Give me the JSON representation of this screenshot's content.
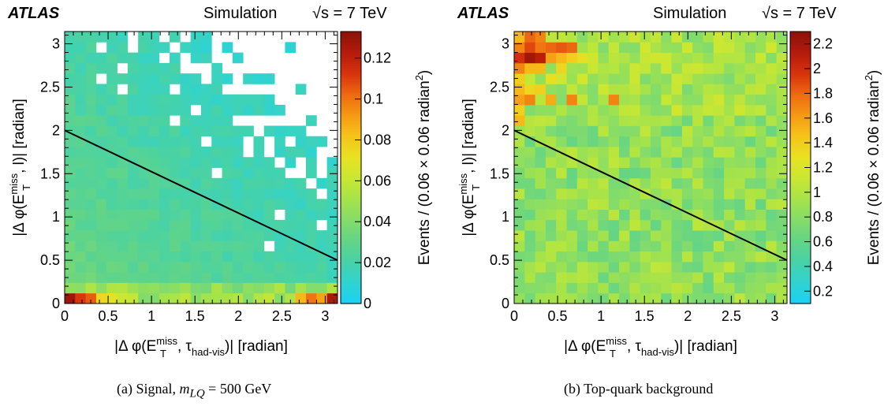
{
  "header": {
    "experiment": "ATLAS",
    "label": "Simulation",
    "energy": "√s = 7 TeV"
  },
  "axes": {
    "xlabel_main": "|Δ φ(E",
    "xlabel_super": "miss",
    "xlabel_sub": "T",
    "xlabel_mid": ", τ",
    "xlabel_sub2": "had-vis",
    "xlabel_end": ")| [radian]",
    "ylabel_main": "|Δ φ(E",
    "ylabel_super": "miss",
    "ylabel_sub": "T",
    "ylabel_end": ", l)| [radian]",
    "zlabel_main": "Events / (0.06 × 0.06 radian",
    "zlabel_super": "2",
    "zlabel_end": ")",
    "x_ticks": [
      "0",
      "0.5",
      "1",
      "1.5",
      "2",
      "2.5",
      "3"
    ],
    "y_ticks": [
      "0",
      "0.5",
      "1",
      "1.5",
      "2",
      "2.5",
      "3"
    ]
  },
  "captions": {
    "a_prefix": "(a)  Signal, ",
    "a_var": "m",
    "a_sub": "LQ",
    "a_suffix": " = 500 GeV",
    "b": "(b)  Top-quark background"
  },
  "colors": {
    "palette": [
      "#19d2f5",
      "#30d3d0",
      "#47d2a8",
      "#62d487",
      "#84dc6a",
      "#a6e34a",
      "#c9e733",
      "#e8e222",
      "#f6c41a",
      "#f59a14",
      "#ee6a10",
      "#d8330d",
      "#b41b0c",
      "#8b1207"
    ],
    "cut_line": "#000000"
  },
  "chart_data": [
    {
      "type": "heatmap",
      "id": "signal",
      "title": "(a) Signal, m_LQ = 500 GeV",
      "xlabel": "|Δφ(E_T^miss, τ_had-vis)| [radian]",
      "ylabel": "|Δφ(E_T^miss, l)| [radian]",
      "zlabel": "Events / (0.06 × 0.06 radian²)",
      "xlim": [
        0,
        3.1416
      ],
      "ylim": [
        0,
        3.1416
      ],
      "zlim": [
        0,
        0.133
      ],
      "z_ticks": [
        "0",
        "0.02",
        "0.04",
        "0.06",
        "0.08",
        "0.1",
        "0.12"
      ],
      "z_tick_values": [
        0,
        0.02,
        0.04,
        0.06,
        0.08,
        0.1,
        0.12
      ],
      "nbins": 26,
      "bin_width": 0.1208,
      "z_description": "dense low values everywhere; high values along bottom row (y≈0); many empty bins in upper-right triangle",
      "hot_bins": [
        {
          "ix": 0,
          "iy": 0,
          "z": 0.128
        },
        {
          "ix": 1,
          "iy": 0,
          "z": 0.112
        },
        {
          "ix": 2,
          "iy": 0,
          "z": 0.105
        },
        {
          "ix": 3,
          "iy": 0,
          "z": 0.075
        },
        {
          "ix": 4,
          "iy": 0,
          "z": 0.07
        },
        {
          "ix": 5,
          "iy": 0,
          "z": 0.062
        },
        {
          "ix": 6,
          "iy": 0,
          "z": 0.06
        },
        {
          "ix": 22,
          "iy": 0,
          "z": 0.085
        },
        {
          "ix": 23,
          "iy": 0,
          "z": 0.1
        },
        {
          "ix": 24,
          "iy": 0,
          "z": 0.09
        },
        {
          "ix": 25,
          "iy": 0,
          "z": 0.125
        }
      ],
      "cut_line": {
        "x": [
          0,
          3.1416
        ],
        "y": [
          2.0,
          0.5
        ]
      }
    },
    {
      "type": "heatmap",
      "id": "top",
      "title": "(b) Top-quark background",
      "xlabel": "|Δφ(E_T^miss, τ_had-vis)| [radian]",
      "ylabel": "|Δφ(E_T^miss, l)| [radian]",
      "zlabel": "Events / (0.06 × 0.06 radian²)",
      "xlim": [
        0,
        3.1416
      ],
      "ylim": [
        0,
        3.1416
      ],
      "zlim": [
        0.1,
        2.3
      ],
      "z_ticks": [
        "0.2",
        "0.4",
        "0.6",
        "0.8",
        "1",
        "1.2",
        "1.4",
        "1.6",
        "1.8",
        "2",
        "2.2"
      ],
      "z_tick_values": [
        0.2,
        0.4,
        0.6,
        0.8,
        1.0,
        1.2,
        1.4,
        1.6,
        1.8,
        2.0,
        2.2
      ],
      "nbins": 26,
      "bin_width": 0.1208,
      "z_description": "mostly 0.6–1.2; elevated values (1.4–2.2) in the top-left corner",
      "hot_bins": [
        {
          "ix": 0,
          "iy": 25,
          "z": 1.5
        },
        {
          "ix": 1,
          "iy": 25,
          "z": 1.8
        },
        {
          "ix": 2,
          "iy": 25,
          "z": 1.7
        },
        {
          "ix": 0,
          "iy": 24,
          "z": 1.7
        },
        {
          "ix": 1,
          "iy": 24,
          "z": 1.9
        },
        {
          "ix": 2,
          "iy": 24,
          "z": 1.75
        },
        {
          "ix": 3,
          "iy": 24,
          "z": 1.8
        },
        {
          "ix": 4,
          "iy": 24,
          "z": 1.85
        },
        {
          "ix": 5,
          "iy": 24,
          "z": 1.8
        },
        {
          "ix": 0,
          "iy": 23,
          "z": 2.0
        },
        {
          "ix": 1,
          "iy": 23,
          "z": 2.2
        },
        {
          "ix": 2,
          "iy": 23,
          "z": 2.1
        },
        {
          "ix": 3,
          "iy": 23,
          "z": 1.6
        },
        {
          "ix": 4,
          "iy": 23,
          "z": 1.5
        },
        {
          "ix": 5,
          "iy": 23,
          "z": 1.4
        },
        {
          "ix": 6,
          "iy": 23,
          "z": 1.3
        },
        {
          "ix": 0,
          "iy": 22,
          "z": 1.7
        },
        {
          "ix": 1,
          "iy": 22,
          "z": 1.5
        },
        {
          "ix": 2,
          "iy": 22,
          "z": 1.5
        },
        {
          "ix": 4,
          "iy": 22,
          "z": 1.35
        },
        {
          "ix": 0,
          "iy": 21,
          "z": 1.4
        },
        {
          "ix": 3,
          "iy": 21,
          "z": 1.3
        },
        {
          "ix": 0,
          "iy": 20,
          "z": 1.5
        },
        {
          "ix": 1,
          "iy": 20,
          "z": 1.35
        },
        {
          "ix": 2,
          "iy": 20,
          "z": 1.4
        },
        {
          "ix": 0,
          "iy": 19,
          "z": 1.6
        },
        {
          "ix": 1,
          "iy": 19,
          "z": 1.7
        },
        {
          "ix": 3,
          "iy": 19,
          "z": 1.55
        },
        {
          "ix": 5,
          "iy": 19,
          "z": 1.7
        },
        {
          "ix": 9,
          "iy": 19,
          "z": 1.7
        },
        {
          "ix": 0,
          "iy": 18,
          "z": 1.4
        },
        {
          "ix": 0,
          "iy": 17,
          "z": 1.5
        }
      ],
      "cut_line": {
        "x": [
          0,
          3.1416
        ],
        "y": [
          2.0,
          0.5
        ]
      }
    }
  ]
}
